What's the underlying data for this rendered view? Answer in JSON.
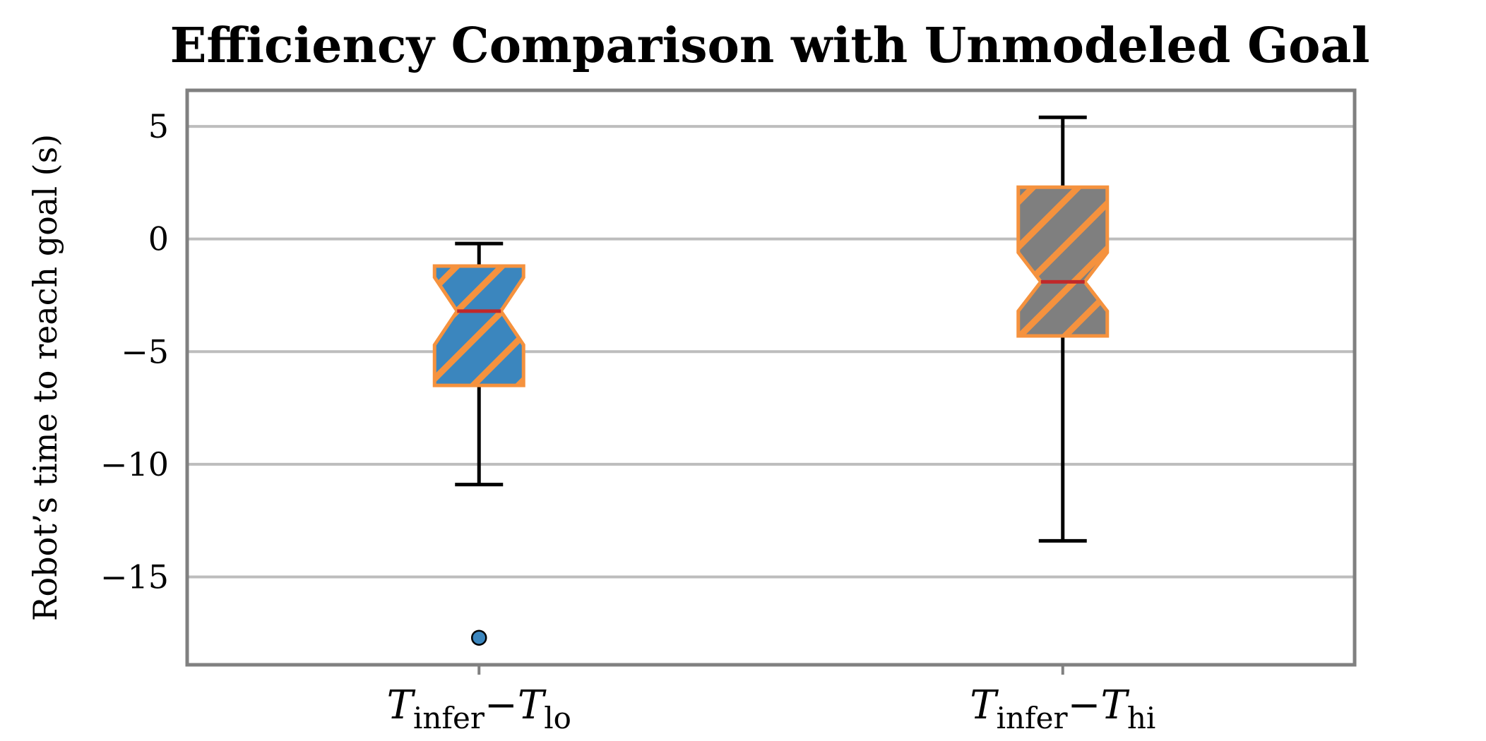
{
  "chart_data": {
    "type": "boxplot",
    "title": "Efficiency Comparison with Unmodeled Goal",
    "ylabel": "Robot’s time to reach goal (s)",
    "xlabel": "",
    "ylim": [
      -18.9,
      6.6
    ],
    "yticks": [
      5,
      0,
      -5,
      -10,
      -15
    ],
    "ytick_labels": [
      "5",
      "0",
      "−5",
      "−10",
      "−15"
    ],
    "grid": "horizontal",
    "categories": [
      {
        "main": "T",
        "sub": "infer",
        "minus": "−",
        "main2": "T",
        "sub2": "lo"
      },
      {
        "main": "T",
        "sub": "infer",
        "minus": "−",
        "main2": "T",
        "sub2": "hi"
      }
    ],
    "boxes": [
      {
        "whisker_low": -10.9,
        "q1": -6.5,
        "median": -3.2,
        "q3": -1.2,
        "whisker_high": -0.2,
        "notch_low": -4.7,
        "notch_high": -1.7,
        "outliers": [
          -17.7
        ],
        "fill": "#3b86be"
      },
      {
        "whisker_low": -13.4,
        "q1": -4.3,
        "median": -1.9,
        "q3": 2.3,
        "whisker_high": 5.4,
        "notch_low": -3.2,
        "notch_high": -0.6,
        "outliers": [],
        "fill": "#7f7f7f"
      }
    ],
    "colors": {
      "edge": "#f5923e",
      "median": "#c0282a",
      "whisker": "#000000",
      "grid": "#bdbdbd",
      "frame": "#808080"
    }
  }
}
